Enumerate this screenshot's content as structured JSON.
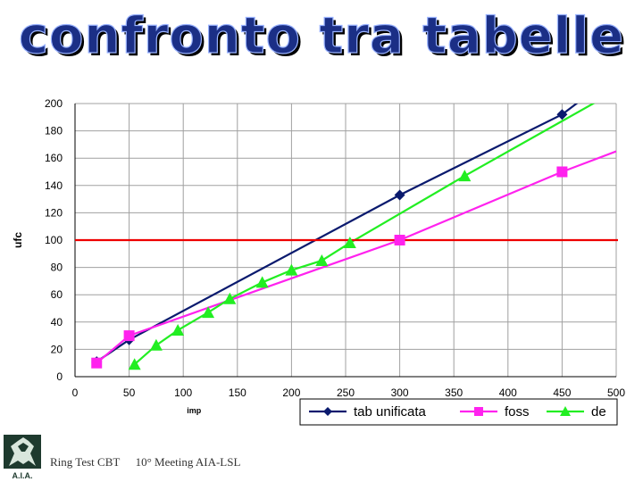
{
  "slide": {
    "title": "confronto tra tabelle",
    "logo_text": "A.I.A.",
    "footer_left": "Ring Test CBT",
    "footer_right": "10° Meeting AIA-LSL"
  },
  "colors": {
    "title": "#1b2f86",
    "threshold": "#ee0000",
    "gridline": "#a0a0a0"
  },
  "chart_data": {
    "type": "line",
    "xlabel": "imp",
    "ylabel": "ufc",
    "xlim": [
      0,
      500
    ],
    "ylim": [
      0,
      200
    ],
    "xticks": [
      0,
      50,
      100,
      150,
      200,
      250,
      300,
      350,
      400,
      450,
      500
    ],
    "yticks": [
      0,
      20,
      40,
      60,
      80,
      100,
      120,
      140,
      160,
      180,
      200
    ],
    "grid": true,
    "legend_position": "bottom",
    "reference_line": {
      "y": 100,
      "color": "#ee0000"
    },
    "series": [
      {
        "name": "tab unificata",
        "color": "#0a1a6e",
        "marker": "diamond",
        "points": [
          [
            20,
            11
          ],
          [
            50,
            27
          ],
          [
            300,
            133
          ],
          [
            450,
            192
          ]
        ],
        "line": [
          [
            20,
            11
          ],
          [
            50,
            27
          ],
          [
            300,
            133
          ],
          [
            450,
            192
          ],
          [
            470,
            204
          ]
        ]
      },
      {
        "name": "foss",
        "color": "#ff22ee",
        "marker": "square",
        "points": [
          [
            20,
            10
          ],
          [
            50,
            30
          ],
          [
            300,
            100
          ],
          [
            450,
            150
          ]
        ],
        "line": [
          [
            20,
            10
          ],
          [
            50,
            30
          ],
          [
            300,
            100
          ],
          [
            450,
            150
          ],
          [
            500,
            165
          ]
        ]
      },
      {
        "name": "de",
        "color": "#22ee22",
        "marker": "triangle",
        "points": [
          [
            55,
            9
          ],
          [
            75,
            23
          ],
          [
            95,
            34
          ],
          [
            123,
            47
          ],
          [
            143,
            57
          ],
          [
            173,
            69
          ],
          [
            200,
            78
          ],
          [
            228,
            85
          ],
          [
            254,
            98
          ],
          [
            360,
            147
          ]
        ],
        "line": [
          [
            55,
            9
          ],
          [
            75,
            23
          ],
          [
            95,
            34
          ],
          [
            123,
            47
          ],
          [
            143,
            57
          ],
          [
            173,
            69
          ],
          [
            200,
            78
          ],
          [
            228,
            85
          ],
          [
            254,
            98
          ],
          [
            360,
            147
          ],
          [
            490,
            205
          ]
        ]
      }
    ]
  }
}
